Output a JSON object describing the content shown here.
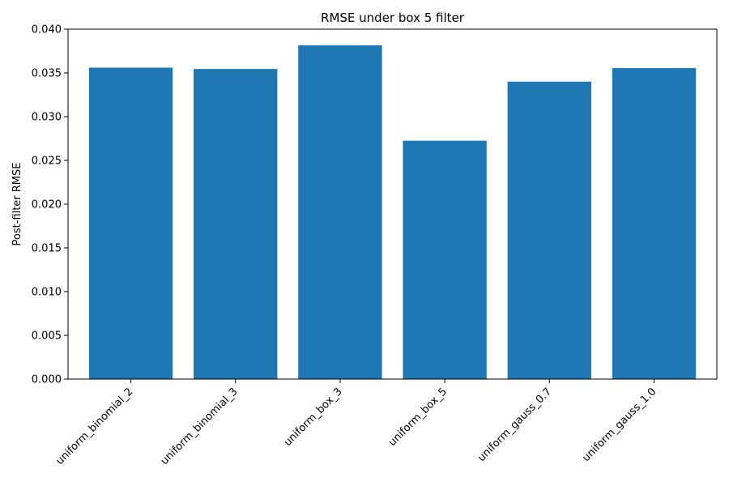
{
  "chart_data": {
    "type": "bar",
    "title": "RMSE under box 5 filter",
    "xlabel": "",
    "ylabel": "Post-filter RMSE",
    "categories": [
      "uniform_binomial_2",
      "uniform_binomial_3",
      "uniform_box_3",
      "uniform_box_5",
      "uniform_gauss_0.7",
      "uniform_gauss_1.0"
    ],
    "values": [
      0.0356,
      0.03545,
      0.03815,
      0.02725,
      0.034,
      0.03555
    ],
    "ylim": [
      0,
      0.04
    ],
    "yticks": [
      "0.000",
      "0.005",
      "0.010",
      "0.015",
      "0.020",
      "0.025",
      "0.030",
      "0.035",
      "0.040"
    ],
    "bar_color": "#1f77b4",
    "grid": false,
    "legend": "none"
  }
}
